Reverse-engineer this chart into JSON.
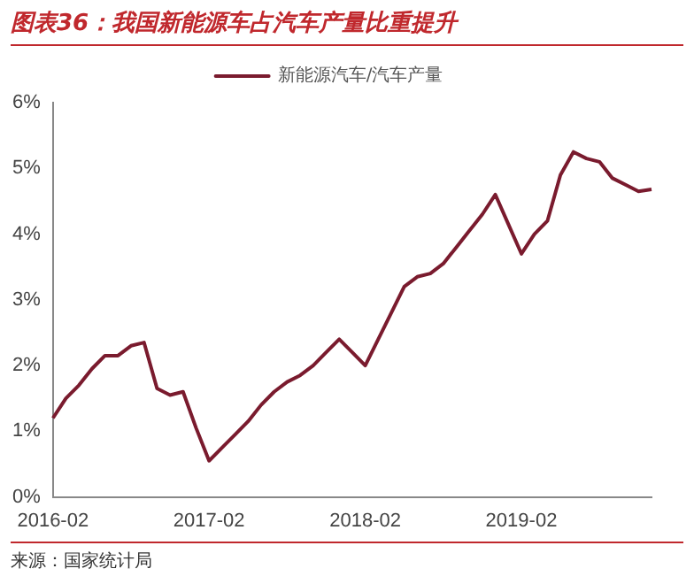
{
  "chart_data": {
    "type": "line",
    "title": "图表36：我国新能源车占汽车产量比重提升",
    "categories": [
      "2016-02",
      null,
      null,
      null,
      null,
      null,
      null,
      null,
      null,
      null,
      null,
      null,
      "2017-02",
      null,
      null,
      null,
      null,
      null,
      null,
      null,
      null,
      null,
      null,
      null,
      "2018-02",
      null,
      null,
      null,
      null,
      null,
      null,
      null,
      null,
      null,
      null,
      null,
      "2019-02",
      null,
      null,
      null,
      null,
      null,
      null,
      null,
      null,
      null,
      null
    ],
    "series": [
      {
        "name": "新能源汽车/汽车产量",
        "color": "#7a1b2e",
        "values": [
          1.2,
          1.5,
          1.7,
          1.95,
          2.15,
          2.15,
          2.3,
          2.35,
          1.65,
          1.55,
          1.6,
          1.05,
          0.55,
          0.75,
          0.95,
          1.15,
          1.4,
          1.6,
          1.75,
          1.85,
          2.0,
          2.2,
          2.4,
          2.2,
          2.0,
          2.4,
          2.8,
          3.2,
          3.35,
          3.4,
          3.55,
          3.8,
          4.05,
          4.3,
          4.6,
          4.15,
          3.7,
          4.0,
          4.2,
          4.9,
          5.25,
          5.15,
          5.1,
          4.85,
          4.75,
          4.65,
          4.68
        ]
      }
    ],
    "ylim": [
      0,
      6
    ],
    "yticks": [
      {
        "value": 0,
        "label": "0%"
      },
      {
        "value": 1,
        "label": "1%"
      },
      {
        "value": 2,
        "label": "2%"
      },
      {
        "value": 3,
        "label": "3%"
      },
      {
        "value": 4,
        "label": "4%"
      },
      {
        "value": 5,
        "label": "5%"
      },
      {
        "value": 6,
        "label": "6%"
      }
    ],
    "legend": "top",
    "grid": false,
    "marker": "none",
    "line_style": "solid",
    "annotations": [
      "来源：国家统计局"
    ]
  }
}
